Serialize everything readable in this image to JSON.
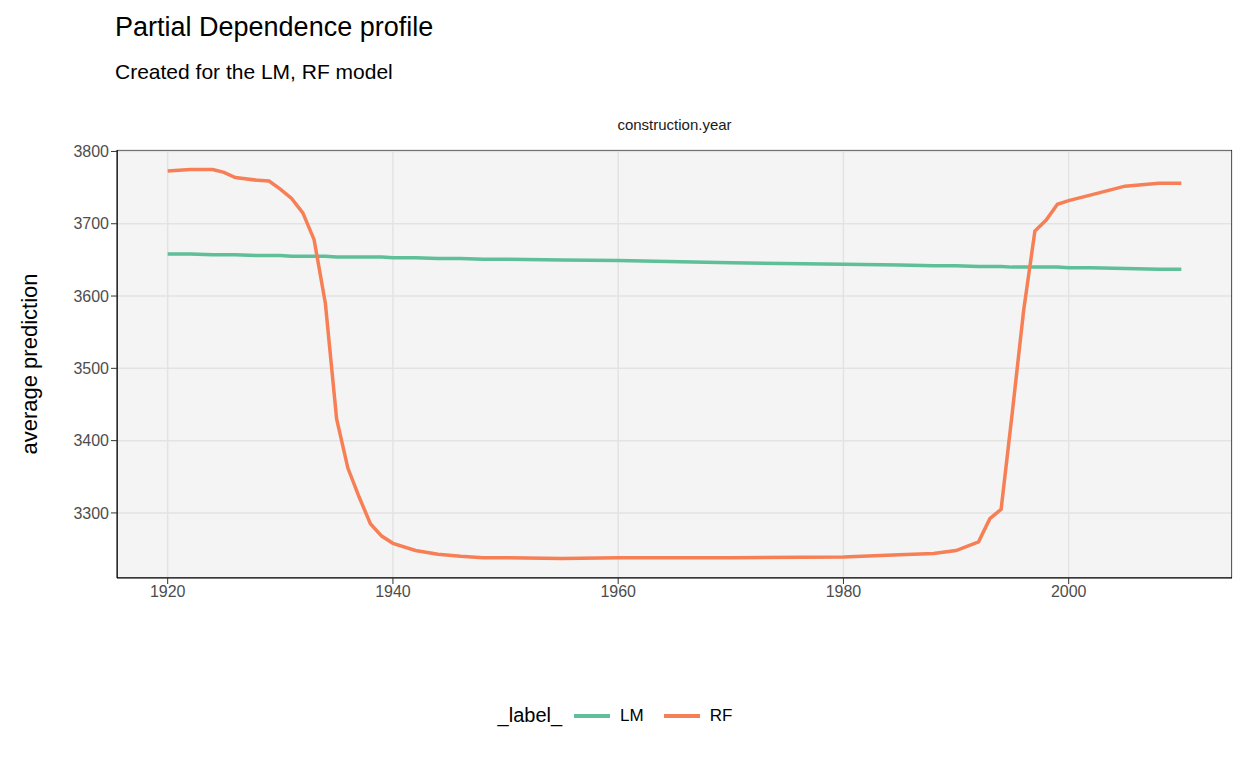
{
  "chart_data": {
    "type": "line",
    "title": "Partial Dependence profile",
    "subtitle": "Created for the LM, RF model",
    "annotations": [
      "construction.year"
    ],
    "y_label": "average prediction",
    "legend_title": "_label_",
    "legend": "bottom",
    "grid": true,
    "x": [
      1920,
      1922,
      1924,
      1925,
      1926,
      1928,
      1929,
      1930,
      1931,
      1932,
      1933,
      1934,
      1935,
      1936,
      1937,
      1938,
      1939,
      1940,
      1942,
      1944,
      1946,
      1948,
      1950,
      1955,
      1960,
      1970,
      1980,
      1985,
      1988,
      1990,
      1992,
      1993,
      1994,
      1995,
      1996,
      1997,
      1998,
      1999,
      2000,
      2002,
      2005,
      2008,
      2010
    ],
    "xlim": [
      1915.5,
      2014.5
    ],
    "xticks": [
      1920,
      1940,
      1960,
      1980,
      2000
    ],
    "ylim": [
      3210,
      3802
    ],
    "yticks": [
      3300,
      3400,
      3500,
      3600,
      3700,
      3800
    ],
    "series": [
      {
        "name": "LM",
        "color": "#5ebf99",
        "values": [
          3658,
          3658,
          3657,
          3657,
          3657,
          3656,
          3656,
          3656,
          3655,
          3655,
          3655,
          3655,
          3654,
          3654,
          3654,
          3654,
          3654,
          3653,
          3653,
          3652,
          3652,
          3651,
          3651,
          3650,
          3649,
          3646,
          3644,
          3643,
          3642,
          3642,
          3641,
          3641,
          3641,
          3640,
          3640,
          3640,
          3640,
          3640,
          3639,
          3639,
          3638,
          3637,
          3637
        ]
      },
      {
        "name": "RF",
        "color": "#f77f55",
        "values": [
          3773,
          3775,
          3775,
          3771,
          3764,
          3760,
          3759,
          3748,
          3735,
          3715,
          3678,
          3590,
          3430,
          3362,
          3322,
          3285,
          3268,
          3258,
          3248,
          3243,
          3240,
          3238,
          3238,
          3237,
          3238,
          3238,
          3239,
          3242,
          3244,
          3248,
          3260,
          3292,
          3305,
          3440,
          3580,
          3690,
          3705,
          3727,
          3732,
          3740,
          3752,
          3756,
          3756
        ]
      }
    ]
  }
}
